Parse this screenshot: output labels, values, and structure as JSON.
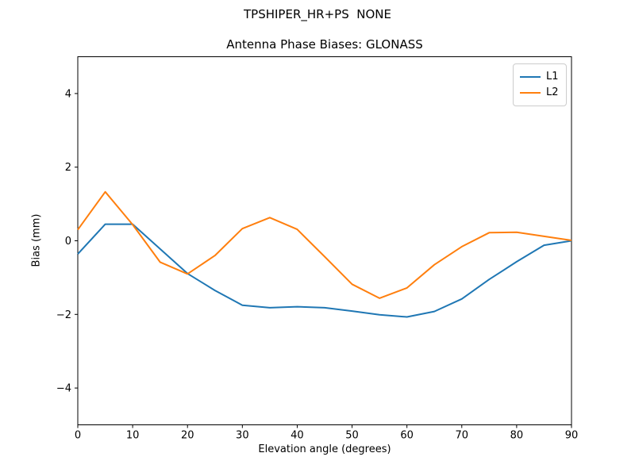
{
  "figure": {
    "title": "TPSHIPER_HR+PS  NONE",
    "subtitle": "Antenna Phase Biases: GLONASS"
  },
  "chart_data": {
    "type": "line",
    "title": "TPSHIPER_HR+PS  NONE",
    "subtitle": "Antenna Phase Biases: GLONASS",
    "xlabel": "Elevation angle (degrees)",
    "ylabel": "Bias (mm)",
    "xlim": [
      0,
      90
    ],
    "ylim": [
      -5,
      5
    ],
    "grid": false,
    "legend_position": "upper right",
    "xticks": {
      "values": [
        0,
        10,
        20,
        30,
        40,
        50,
        60,
        70,
        80,
        90
      ],
      "labels": [
        "0",
        "10",
        "20",
        "30",
        "40",
        "50",
        "60",
        "70",
        "80",
        "90"
      ]
    },
    "yticks": {
      "values": [
        -4,
        -2,
        0,
        2,
        4
      ],
      "labels": [
        "−4",
        "−2",
        "0",
        "2",
        "4"
      ]
    },
    "x": [
      0,
      5,
      10,
      15,
      20,
      25,
      30,
      35,
      40,
      45,
      50,
      55,
      60,
      65,
      70,
      75,
      80,
      85,
      90
    ],
    "series": [
      {
        "name": "L1",
        "color": "#1f77b4",
        "values": [
          -0.36,
          0.45,
          0.45,
          -0.22,
          -0.89,
          -1.35,
          -1.75,
          -1.82,
          -1.79,
          -1.82,
          -1.91,
          -2.01,
          -2.07,
          -1.92,
          -1.58,
          -1.05,
          -0.57,
          -0.12,
          0.0
        ]
      },
      {
        "name": "L2",
        "color": "#ff7f0e",
        "values": [
          0.3,
          1.33,
          0.44,
          -0.58,
          -0.9,
          -0.4,
          0.33,
          0.63,
          0.31,
          -0.43,
          -1.18,
          -1.56,
          -1.28,
          -0.65,
          -0.16,
          0.22,
          0.23,
          0.12,
          0.01
        ]
      }
    ]
  }
}
